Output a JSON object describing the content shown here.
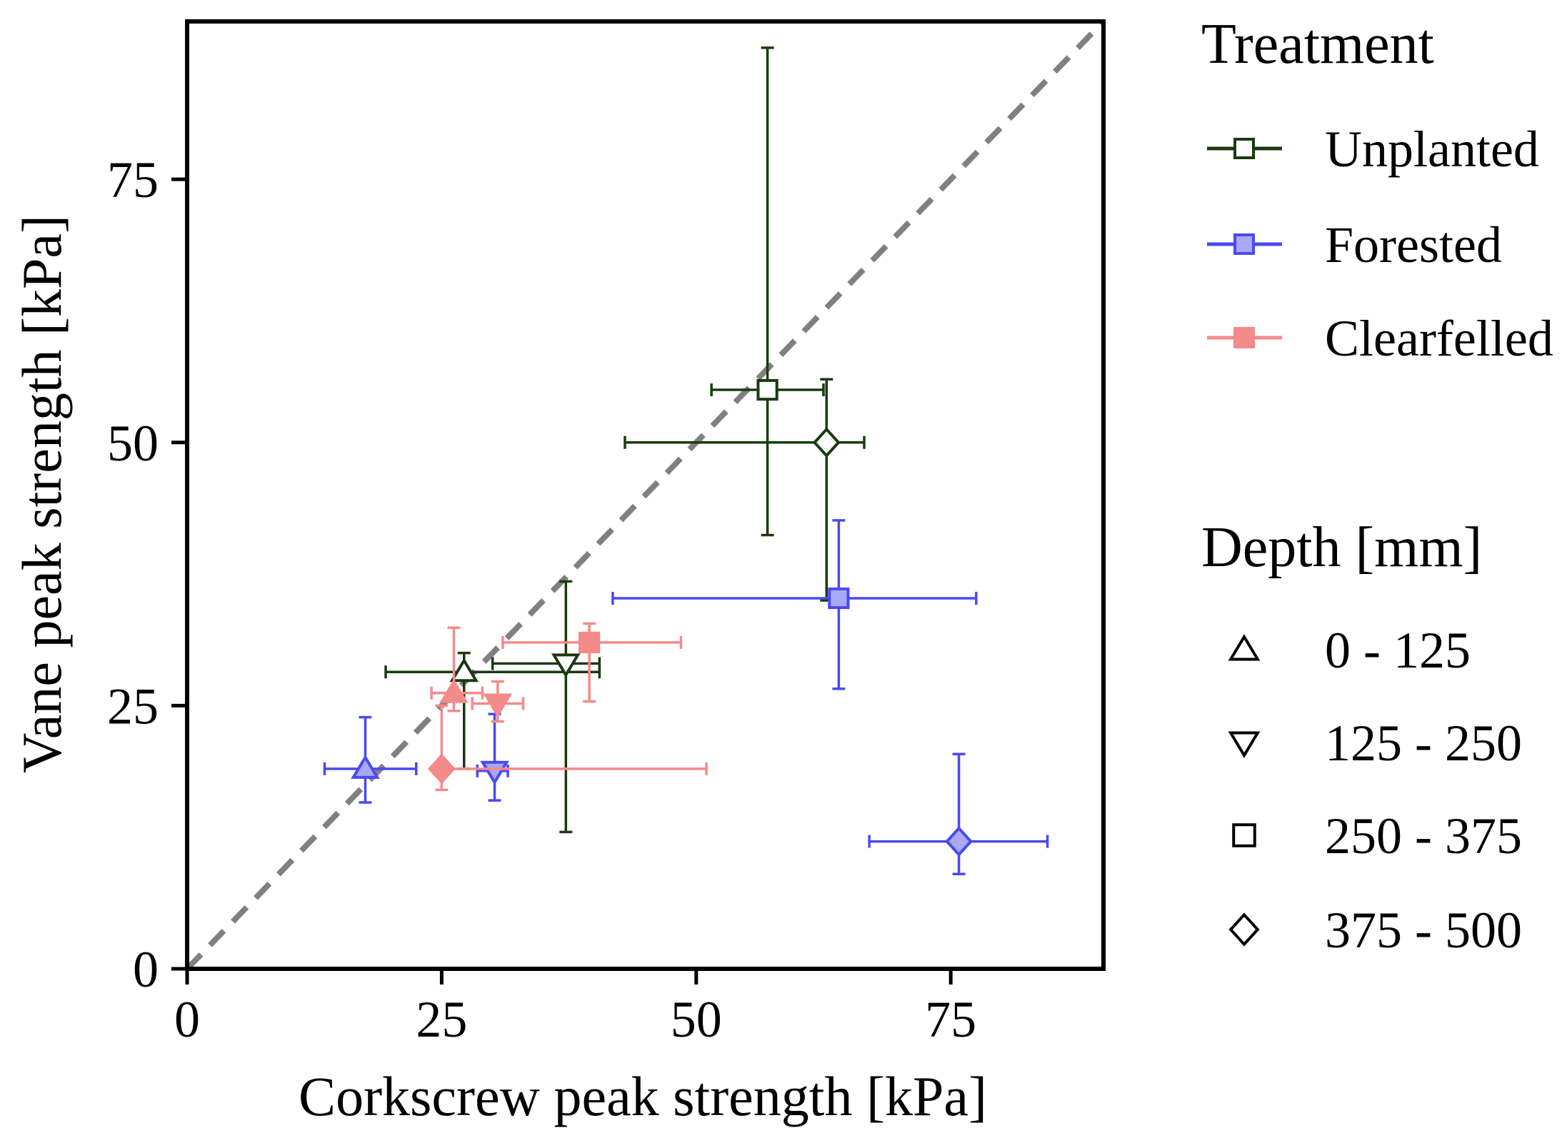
{
  "chart_data": {
    "type": "scatter",
    "xlabel": "Corkscrew peak strength [kPa]",
    "ylabel": "Vane  peak strength [kPa]",
    "xlim": [
      0,
      90
    ],
    "ylim": [
      0,
      90
    ],
    "xticks": [
      "0",
      "25",
      "50",
      "75"
    ],
    "yticks": [
      "0",
      "25",
      "50",
      "75"
    ],
    "xtick_values": [
      0,
      25,
      50,
      75
    ],
    "ytick_values": [
      0,
      25,
      50,
      75
    ],
    "grid": false,
    "reference_line": "1:1 dashed",
    "legend": {
      "treatment_title": "Treatment",
      "treatments": [
        {
          "name": "Unplanted",
          "color": "#1a3a12",
          "fill": "#ffffff"
        },
        {
          "name": "Forested",
          "color": "#4a4af0",
          "fill": "#a8a8f5"
        },
        {
          "name": "Clearfelled",
          "color": "#f58a8a",
          "fill": "#f58a8a"
        }
      ],
      "depth_title": "Depth [mm]",
      "depths": [
        {
          "label": "0 - 125",
          "marker": "triangle-up"
        },
        {
          "label": "125 - 250",
          "marker": "triangle-down"
        },
        {
          "label": "250 - 375",
          "marker": "square"
        },
        {
          "label": "375 - 500",
          "marker": "diamond"
        }
      ]
    },
    "series": [
      {
        "name": "Unplanted",
        "points": [
          {
            "depth": "0 - 125",
            "marker": "triangle-up",
            "x": 27.2,
            "y": 28.2,
            "xerr": [
              19.5,
              40.5
            ],
            "yerr": [
              19.0,
              30.0
            ]
          },
          {
            "depth": "125 - 250",
            "marker": "triangle-down",
            "x": 37.2,
            "y": 29.0,
            "xerr": [
              30.0,
              40.5
            ],
            "yerr": [
              13.0,
              36.8
            ]
          },
          {
            "depth": "250 - 375",
            "marker": "square",
            "x": 57.0,
            "y": 55.0,
            "xerr": [
              51.5,
              62.5
            ],
            "yerr": [
              41.2,
              87.5
            ]
          },
          {
            "depth": "375 - 500",
            "marker": "diamond",
            "x": 62.8,
            "y": 50.0,
            "xerr": [
              43.0,
              66.5
            ],
            "yerr": [
              35.0,
              56.0
            ]
          }
        ]
      },
      {
        "name": "Forested",
        "points": [
          {
            "depth": "0 - 125",
            "marker": "triangle-up",
            "x": 17.5,
            "y": 19.0,
            "xerr": [
              13.5,
              22.5
            ],
            "yerr": [
              15.8,
              23.9
            ]
          },
          {
            "depth": "125 - 250",
            "marker": "triangle-down",
            "x": 30.2,
            "y": 18.8,
            "xerr": [
              28.5,
              31.5
            ],
            "yerr": [
              16.0,
              24.2
            ]
          },
          {
            "depth": "250 - 375",
            "marker": "square",
            "x": 64.0,
            "y": 35.2,
            "xerr": [
              41.8,
              77.5
            ],
            "yerr": [
              26.6,
              42.6
            ]
          },
          {
            "depth": "375 - 500",
            "marker": "diamond",
            "x": 75.8,
            "y": 12.1,
            "xerr": [
              67.0,
              84.5
            ],
            "yerr": [
              9.0,
              20.4
            ]
          }
        ]
      },
      {
        "name": "Clearfelled",
        "points": [
          {
            "depth": "0 - 125",
            "marker": "triangle-up",
            "x": 26.2,
            "y": 26.2,
            "xerr": [
              24.0,
              29.0
            ],
            "yerr": [
              24.5,
              32.4
            ]
          },
          {
            "depth": "125 - 250",
            "marker": "triangle-down",
            "x": 30.5,
            "y": 25.2,
            "xerr": [
              28.0,
              33.0
            ],
            "yerr": [
              23.5,
              27.3
            ]
          },
          {
            "depth": "250 - 375",
            "marker": "square",
            "x": 39.5,
            "y": 31.0,
            "xerr": [
              31.0,
              48.5
            ],
            "yerr": [
              25.4,
              32.8
            ]
          },
          {
            "depth": "375 - 500",
            "marker": "diamond",
            "x": 25.0,
            "y": 19.0,
            "xerr": [
              24.5,
              51.0
            ],
            "yerr": [
              17.0,
              25.0
            ]
          }
        ]
      }
    ]
  }
}
